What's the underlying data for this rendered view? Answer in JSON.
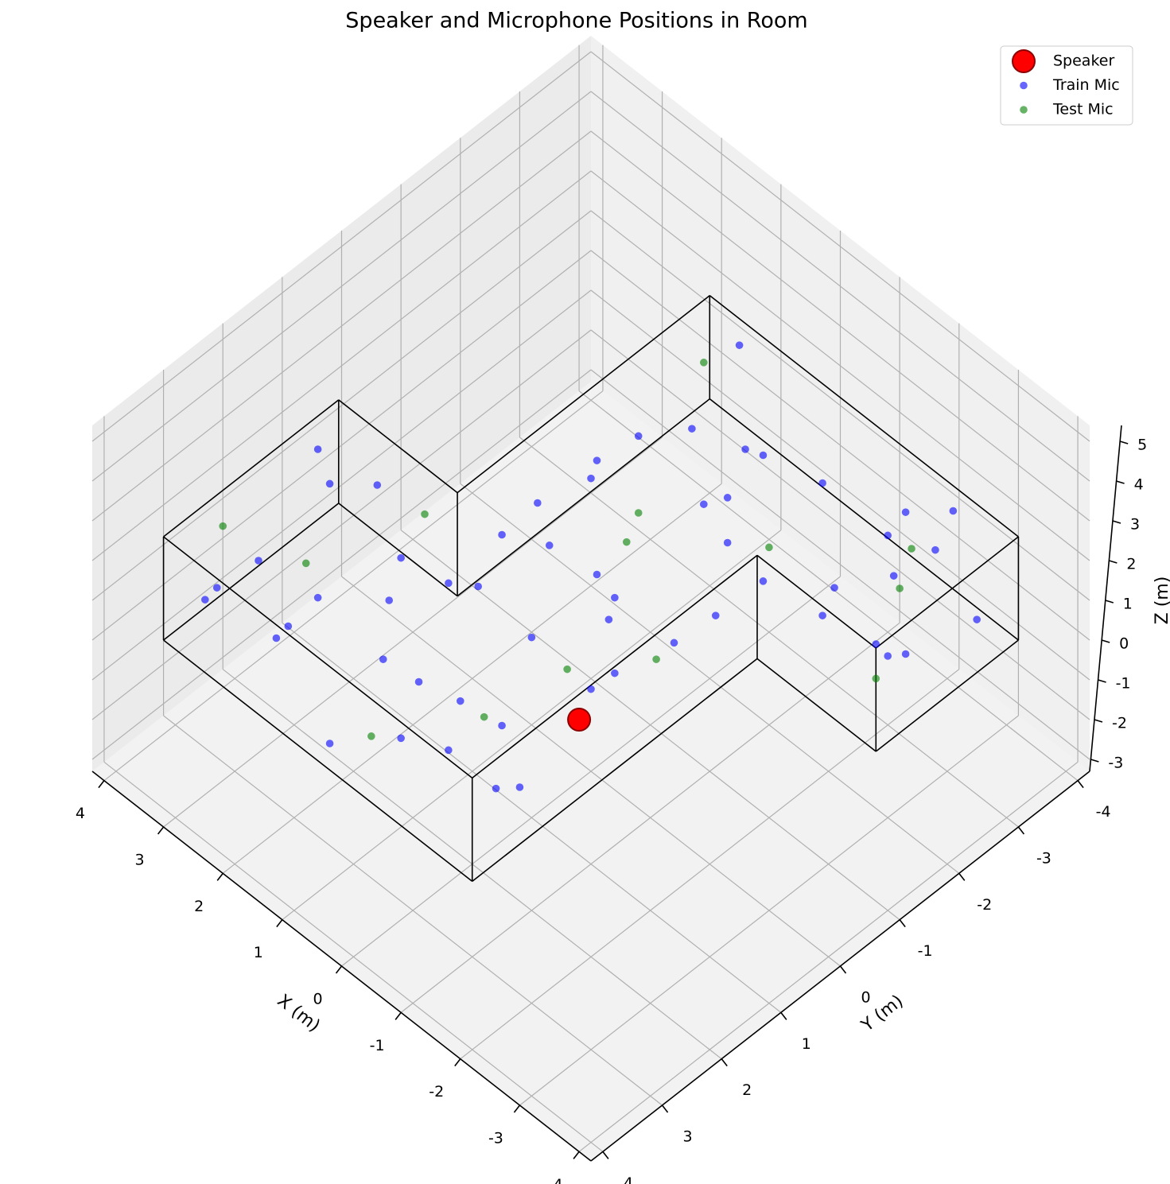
{
  "chart_data": {
    "type": "scatter3d",
    "title": "Speaker and Microphone Positions in Room",
    "x_label": "X (m)",
    "y_label": "Y (m)",
    "z_label": "Z (m)",
    "xlim": [
      -4.2,
      4.2
    ],
    "ylim": [
      -4.2,
      4.2
    ],
    "zlim": [
      -3.3,
      5.4
    ],
    "xticks": [
      -4,
      -3,
      -2,
      -1,
      0,
      1,
      2,
      3,
      4
    ],
    "yticks": [
      -4,
      -3,
      -2,
      -1,
      0,
      1,
      2,
      3,
      4
    ],
    "zticks": [
      -3,
      -2,
      -1,
      0,
      1,
      2,
      3,
      4,
      5
    ],
    "grid": true,
    "legend": "upper right",
    "room": {
      "x": [
        3.6,
        -1.6,
        -1.6,
        -3.6,
        -3.6,
        1.6,
        1.6,
        3.6
      ],
      "y": [
        3.6,
        3.6,
        -1.2,
        -1.2,
        -3.6,
        -3.6,
        0.65,
        0.65
      ],
      "z": [
        0,
        2.6
      ]
    },
    "series": [
      {
        "name": "Speaker",
        "color": "#ff0000",
        "x": [
          -1.4
        ],
        "y": [
          1.6
        ],
        "z": [
          1.5
        ]
      },
      {
        "name": "Train Mic",
        "color": "#0000ff",
        "x": [
          3.2,
          2.5,
          1.8,
          0.9,
          0.2,
          -0.8,
          -1.2,
          2.9,
          2.1,
          1.4,
          0.5,
          -0.3,
          -1.0,
          3.4,
          2.7,
          1.0,
          -0.5,
          3.0,
          2.2,
          0.1,
          1.6,
          -1.4,
          3.5,
          0.7,
          1.2,
          0.4,
          -0.6,
          -1.3,
          0.9,
          -0.1,
          1.5,
          -0.9,
          0.3,
          -1.5,
          1.2,
          0.5,
          -0.4,
          -1.2,
          -2.0,
          -2.8,
          -3.3,
          -3.5,
          0.9,
          -0.9,
          -1.7,
          -2.5,
          -3.0,
          1.4,
          0.0,
          -2.2,
          -1.0,
          0.3,
          -3.4,
          -2.6,
          -1.5,
          1.0
        ],
        "y": [
          3.1,
          2.8,
          3.3,
          2.6,
          3.0,
          3.2,
          2.4,
          1.5,
          1.1,
          2.0,
          1.4,
          1.8,
          1.0,
          2.2,
          0.9,
          3.4,
          2.7,
          3.5,
          2.4,
          0.9,
          0.8,
          3.0,
          1.1,
          2.2,
          0.3,
          -0.5,
          0.2,
          -0.8,
          -1.0,
          -0.2,
          -0.6,
          0.5,
          0.4,
          0.1,
          -2.0,
          -3.1,
          -2.5,
          -1.7,
          -3.3,
          -2.2,
          -1.5,
          -3.0,
          -3.4,
          -3.0,
          -2.4,
          -1.4,
          -2.8,
          -1.4,
          -1.9,
          -2.9,
          -1.3,
          -2.6,
          -1.9,
          -3.5,
          -3.5,
          -2.7
        ],
        "z": [
          1.2,
          0.4,
          2.1,
          1.5,
          0.8,
          1.9,
          0.5,
          2.3,
          0.9,
          1.7,
          2.4,
          0.3,
          1.1,
          0.6,
          1.8,
          0.2,
          2.2,
          1.6,
          1.3,
          1.0,
          0.5,
          1.4,
          2.0,
          0.7,
          1.6,
          0.6,
          2.0,
          1.2,
          2.3,
          0.4,
          1.0,
          0.8,
          2.5,
          1.8,
          1.4,
          0.6,
          2.2,
          0.9,
          1.7,
          0.3,
          2.0,
          1.1,
          2.4,
          1.5,
          0.5,
          1.9,
          2.5,
          0.8,
          1.2,
          0.8,
          2.1,
          0.2,
          1.4,
          2.2,
          0.3,
          1.0
        ]
      },
      {
        "name": "Test Mic",
        "color": "#008000",
        "x": [
          2.8,
          0.6,
          -1.1,
          1.9,
          0.2,
          -0.8,
          -2.4,
          -3.2,
          1.1,
          3.3,
          -0.4,
          -2.9,
          0.8,
          -1.4
        ],
        "y": [
          2.0,
          3.1,
          1.5,
          0.9,
          -0.8,
          -2.2,
          -3.0,
          -1.6,
          -3.0,
          2.9,
          2.2,
          -2.3,
          -1.6,
          0.3
        ],
        "z": [
          1.0,
          0.5,
          2.3,
          2.0,
          1.3,
          0.7,
          1.6,
          0.9,
          2.2,
          2.4,
          1.1,
          2.0,
          0.4,
          1.5
        ]
      }
    ]
  }
}
